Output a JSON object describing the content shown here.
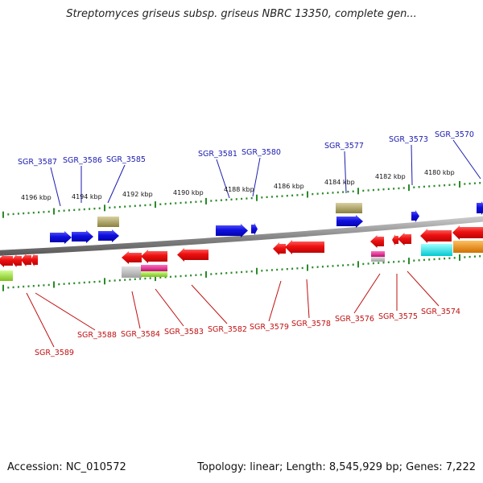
{
  "title": "Streptomyces griseus subsp. griseus NBRC 13350, complete gen...",
  "footer": {
    "accession": "Accession: NC_010572",
    "summary": "Topology: linear; Length: 8,545,929 bp; Genes: 7,222"
  },
  "scale": {
    "ticks": [
      "4196 kbp",
      "4194 kbp",
      "4192 kbp",
      "4190 kbp",
      "4188 kbp",
      "4186 kbp",
      "4184 kbp",
      "4182 kbp",
      "4180 kbp"
    ]
  },
  "genes_top": [
    "SGR_3587",
    "SGR_3586",
    "SGR_3585",
    "SGR_3581",
    "SGR_3580",
    "SGR_3577",
    "SGR_3573",
    "SGR_3570"
  ],
  "genes_bottom": [
    "SGR_3589",
    "SGR_3588",
    "SGR_3584",
    "SGR_3583",
    "SGR_3582",
    "SGR_3579",
    "SGR_3578",
    "SGR_3576",
    "SGR_3575",
    "SGR_3574"
  ],
  "colors": {
    "axis_line": "#888888",
    "forward_gene": "#1010d8",
    "reverse_gene": "#e01010",
    "tick": "#2a8a2a",
    "top_label": "#1a1ab0",
    "bottom_label": "#c01010",
    "tan_feature": "#aaa060",
    "gray_feature": "#b8b8b8",
    "pink_feature": "#e0208a",
    "green_feature": "#a8e040",
    "cyan_feature": "#10e8e8",
    "orange_feature": "#f09010"
  }
}
